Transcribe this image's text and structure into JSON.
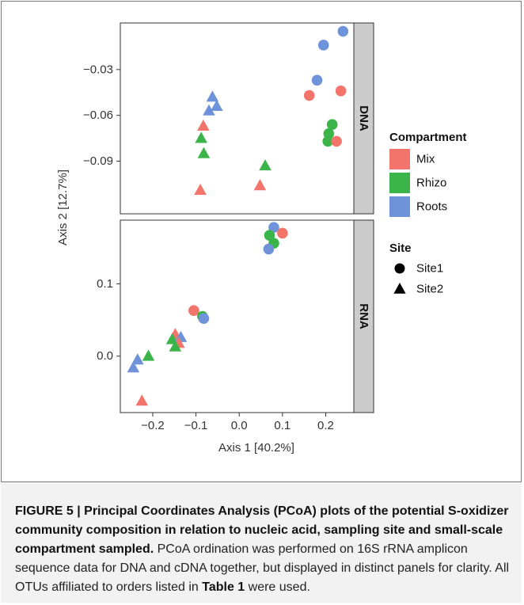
{
  "figure": {
    "caption": {
      "label": "FIGURE 5 | ",
      "bold_title": "Principal Coordinates Analysis (PCoA) plots of the potential S-oxidizer community composition in relation to nucleic acid, sampling site and small-scale compartment sampled.",
      "body_part1": " PCoA ordination was performed on 16S rRNA amplicon sequence data for DNA and cDNA together, but displayed in distinct panels for clarity. All OTUs affiliated to orders listed in ",
      "table_ref": "Table 1",
      "body_part2": " were used."
    }
  },
  "chart_data": {
    "type": "scatter",
    "xlabel": "Axis 1 [40.2%]",
    "ylabel": "Axis 2 [12.7%]",
    "xlim": [
      -0.275,
      0.265
    ],
    "xticks": [
      -0.2,
      -0.1,
      0.0,
      0.1,
      0.2
    ],
    "xtick_labels": [
      "-0.2",
      "-0.1",
      "0.0",
      "0.1",
      "0.2"
    ],
    "grid": false,
    "colors": {
      "Mix": "#F2746B",
      "Rhizo": "#3BB44A",
      "Roots": "#6F93DA",
      "panel_strip": "#CCCCCC"
    },
    "legend": {
      "placement": "right",
      "compartment_title": "Compartment",
      "compartment_items": [
        "Mix",
        "Rhizo",
        "Roots"
      ],
      "site_title": "Site",
      "site_items": [
        "Site1",
        "Site2"
      ]
    },
    "panels": [
      {
        "strip_label": "DNA",
        "ylim": [
          -0.1245,
          0.0005
        ],
        "yticks": [
          -0.03,
          -0.06,
          -0.09
        ],
        "ytick_labels": [
          "-0.03",
          "-0.06",
          "-0.09"
        ],
        "points": [
          {
            "x": 0.24,
            "y": -0.005,
            "compartment": "Roots",
            "site": "Site1"
          },
          {
            "x": 0.195,
            "y": -0.014,
            "compartment": "Roots",
            "site": "Site1"
          },
          {
            "x": 0.18,
            "y": -0.037,
            "compartment": "Roots",
            "site": "Site1"
          },
          {
            "x": 0.162,
            "y": -0.047,
            "compartment": "Mix",
            "site": "Site1"
          },
          {
            "x": 0.235,
            "y": -0.044,
            "compartment": "Mix",
            "site": "Site1"
          },
          {
            "x": 0.215,
            "y": -0.066,
            "compartment": "Rhizo",
            "site": "Site1"
          },
          {
            "x": 0.207,
            "y": -0.072,
            "compartment": "Rhizo",
            "site": "Site1"
          },
          {
            "x": 0.205,
            "y": -0.077,
            "compartment": "Rhizo",
            "site": "Site1"
          },
          {
            "x": 0.225,
            "y": -0.077,
            "compartment": "Mix",
            "site": "Site1"
          },
          {
            "x": -0.062,
            "y": -0.048,
            "compartment": "Roots",
            "site": "Site2"
          },
          {
            "x": -0.052,
            "y": -0.054,
            "compartment": "Roots",
            "site": "Site2"
          },
          {
            "x": -0.07,
            "y": -0.057,
            "compartment": "Roots",
            "site": "Site2"
          },
          {
            "x": -0.083,
            "y": -0.067,
            "compartment": "Mix",
            "site": "Site2"
          },
          {
            "x": -0.088,
            "y": -0.075,
            "compartment": "Rhizo",
            "site": "Site2"
          },
          {
            "x": -0.082,
            "y": -0.085,
            "compartment": "Rhizo",
            "site": "Site2"
          },
          {
            "x": 0.06,
            "y": -0.093,
            "compartment": "Rhizo",
            "site": "Site2"
          },
          {
            "x": 0.048,
            "y": -0.106,
            "compartment": "Mix",
            "site": "Site2"
          },
          {
            "x": -0.09,
            "y": -0.109,
            "compartment": "Mix",
            "site": "Site2"
          }
        ]
      },
      {
        "strip_label": "RNA",
        "ylim": [
          -0.078,
          0.188
        ],
        "yticks": [
          0.1,
          0.0
        ],
        "ytick_labels": [
          "0.1",
          "0.0"
        ],
        "points": [
          {
            "x": 0.08,
            "y": 0.178,
            "compartment": "Roots",
            "site": "Site1"
          },
          {
            "x": 0.1,
            "y": 0.17,
            "compartment": "Mix",
            "site": "Site1"
          },
          {
            "x": 0.07,
            "y": 0.167,
            "compartment": "Rhizo",
            "site": "Site1"
          },
          {
            "x": 0.08,
            "y": 0.156,
            "compartment": "Rhizo",
            "site": "Site1"
          },
          {
            "x": 0.068,
            "y": 0.148,
            "compartment": "Roots",
            "site": "Site1"
          },
          {
            "x": -0.105,
            "y": 0.063,
            "compartment": "Mix",
            "site": "Site1"
          },
          {
            "x": -0.085,
            "y": 0.055,
            "compartment": "Rhizo",
            "site": "Site1"
          },
          {
            "x": -0.082,
            "y": 0.052,
            "compartment": "Roots",
            "site": "Site1"
          },
          {
            "x": -0.148,
            "y": 0.03,
            "compartment": "Mix",
            "site": "Site2"
          },
          {
            "x": -0.155,
            "y": 0.023,
            "compartment": "Rhizo",
            "site": "Site2"
          },
          {
            "x": -0.135,
            "y": 0.026,
            "compartment": "Roots",
            "site": "Site2"
          },
          {
            "x": -0.14,
            "y": 0.018,
            "compartment": "Mix",
            "site": "Site2"
          },
          {
            "x": -0.148,
            "y": 0.013,
            "compartment": "Rhizo",
            "site": "Site2"
          },
          {
            "x": -0.21,
            "y": 0.0,
            "compartment": "Rhizo",
            "site": "Site2"
          },
          {
            "x": -0.235,
            "y": -0.005,
            "compartment": "Roots",
            "site": "Site2"
          },
          {
            "x": -0.245,
            "y": -0.016,
            "compartment": "Roots",
            "site": "Site2"
          },
          {
            "x": -0.225,
            "y": -0.062,
            "compartment": "Mix",
            "site": "Site2"
          }
        ]
      }
    ]
  }
}
